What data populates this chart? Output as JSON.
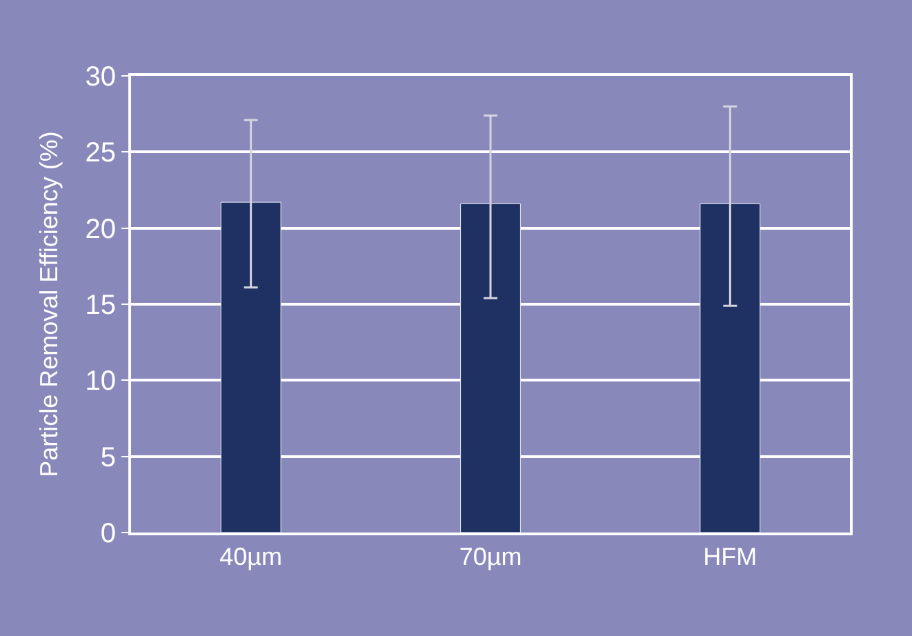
{
  "chart_data": {
    "type": "bar",
    "ylabel": "Particle Removal Efficiency (%)",
    "categories": [
      "40µm",
      "70µm",
      "HFM"
    ],
    "values": [
      21.7,
      21.6,
      21.6
    ],
    "errors": [
      [
        16.1,
        27.1
      ],
      [
        15.4,
        27.4
      ],
      [
        14.9,
        28.0
      ]
    ],
    "color": "#1f3163",
    "ylim": [
      0,
      30
    ],
    "yticks": [
      0,
      5,
      10,
      15,
      20,
      25,
      30
    ],
    "grid": "y"
  }
}
